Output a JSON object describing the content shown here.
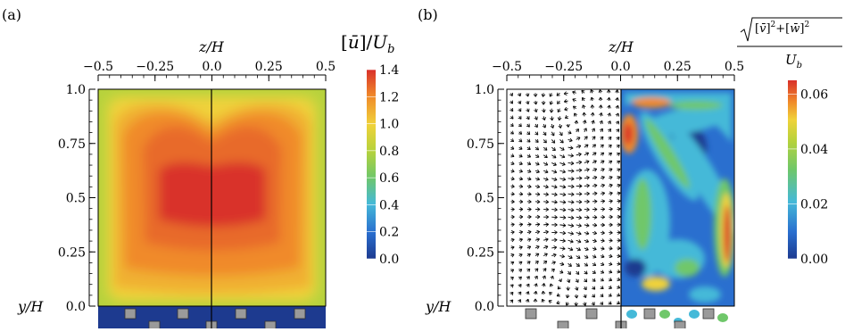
{
  "figure": {
    "panel_a_label": "(a)",
    "panel_b_label": "(b)"
  },
  "chart_data": [
    {
      "type": "heatmap",
      "panel": "(a)",
      "title": "",
      "xlabel": "z/H",
      "ylabel": "y/H",
      "xlim": [
        -0.5,
        0.5
      ],
      "ylim": [
        0.0,
        1.0
      ],
      "x_ticks": [
        "−0.5",
        "−0.25",
        "0.0",
        "0.25",
        "0.5"
      ],
      "y_ticks": [
        "0.0",
        "0.25",
        "0.5",
        "0.75",
        "1.0"
      ],
      "colorbar": {
        "label": "[u̅]/U_b",
        "ticks": [
          "0.0",
          "0.2",
          "0.4",
          "0.6",
          "0.8",
          "1.0",
          "1.2",
          "1.4"
        ],
        "range": [
          0.0,
          1.4
        ],
        "colors": [
          "#1d3a8f",
          "#2a6fcf",
          "#45b9d8",
          "#6fc76a",
          "#b6d23c",
          "#f0d23a",
          "#f08a2a",
          "#d9302a"
        ]
      },
      "field": {
        "description_values": "mean streamwise velocity; core maximum about 1.3 near y/H = 0.5, decreasing to about 0.6 near the walls",
        "core_max": 1.3,
        "core_y": 0.5,
        "wall_value": 0.6,
        "blockage_value": 0.0
      },
      "divider_z": 0.0
    },
    {
      "type": "heatmap",
      "panel": "(b)",
      "title": "",
      "xlabel": "z/H",
      "ylabel": "y/H",
      "xlim": [
        -0.5,
        0.5
      ],
      "ylim": [
        0.0,
        1.0
      ],
      "x_ticks": [
        "−0.5",
        "−0.25",
        "0.0",
        "0.25",
        "0.5"
      ],
      "y_ticks": [
        "0.0",
        "0.25",
        "0.5",
        "0.75",
        "1.0"
      ],
      "colorbar": {
        "label_numerator": "√([v̅]²+[w̅]²)",
        "label_denominator": "U_b",
        "ticks": [
          "0.00",
          "0.02",
          "0.04",
          "0.06"
        ],
        "range": [
          0.0,
          0.065
        ],
        "colors": [
          "#1d3a8f",
          "#2a6fcf",
          "#45b9d8",
          "#6fc76a",
          "#b6d23c",
          "#f0d23a",
          "#f08a2a",
          "#d9302a"
        ]
      },
      "left_half": "secondary-flow vector field (z/H from -0.5 to 0.0)",
      "right_half": "secondary velocity magnitude contour (z/H from 0.0 to 0.5)",
      "peaks": [
        {
          "z": 0.45,
          "y": 0.35,
          "value": 0.06
        },
        {
          "z": 0.03,
          "y": 0.78,
          "value": 0.05
        },
        {
          "z": 0.2,
          "y": 0.95,
          "value": 0.05
        },
        {
          "z": 0.15,
          "y": 0.65,
          "value": 0.04
        }
      ],
      "divider_z": 0.0
    }
  ]
}
